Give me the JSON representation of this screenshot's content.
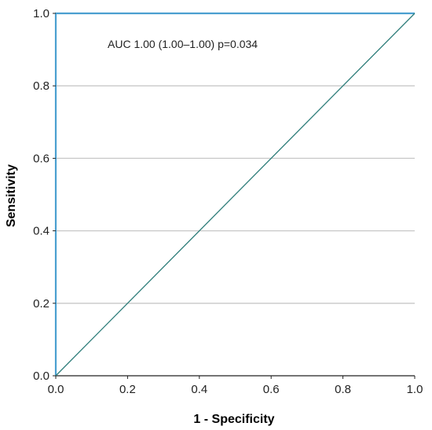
{
  "chart_data": {
    "type": "line",
    "xlabel": "1 - Specificity",
    "ylabel": "Sensitivity",
    "xlim": [
      0,
      1
    ],
    "ylim": [
      0,
      1
    ],
    "x_ticks": [
      "0.0",
      "0.2",
      "0.4",
      "0.6",
      "0.8",
      "1.0"
    ],
    "y_ticks": [
      "0.0",
      "0.2",
      "0.4",
      "0.6",
      "0.8",
      "1.0"
    ],
    "grid": "horizontal",
    "annotation": "AUC 1.00 (1.00–1.00) p=0.034",
    "series": [
      {
        "role": "roc-curve",
        "color": "#4a9fd0",
        "x": [
          0,
          0,
          1
        ],
        "y": [
          0,
          1,
          1
        ]
      },
      {
        "role": "reference-line",
        "color": "#2e7d7a",
        "x": [
          0,
          1
        ],
        "y": [
          0,
          1
        ]
      }
    ]
  }
}
